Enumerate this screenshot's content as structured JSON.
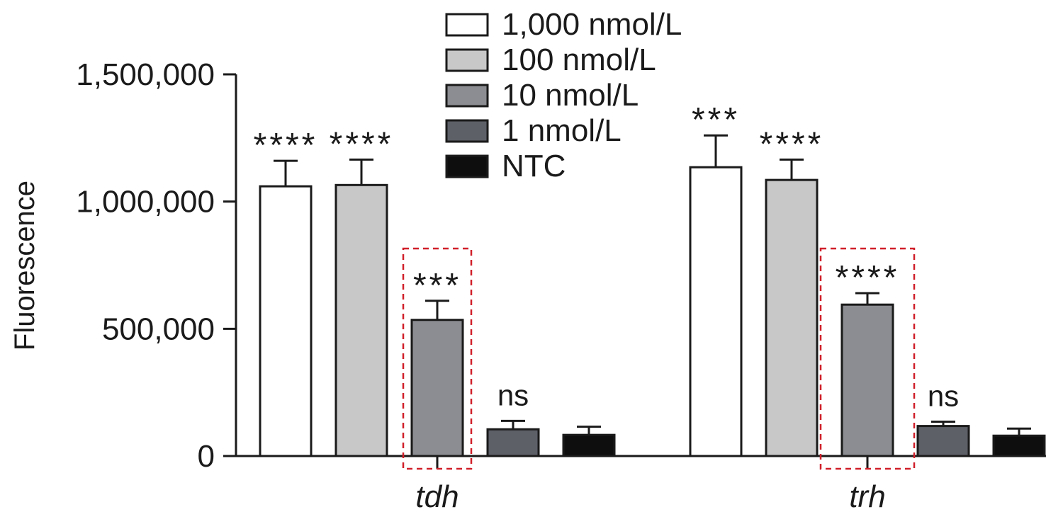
{
  "chart_data": {
    "type": "bar",
    "title": "",
    "xlabel": "",
    "ylabel": "Fluorescence",
    "ylim": [
      0,
      1500000
    ],
    "y_ticks": [
      {
        "value": 0,
        "label": "0"
      },
      {
        "value": 500000,
        "label": "500,000"
      },
      {
        "value": 1000000,
        "label": "1,000,000"
      },
      {
        "value": 1500000,
        "label": "1,500,000"
      }
    ],
    "categories": [
      "tdh",
      "trh"
    ],
    "legend_position": "top",
    "highlighted_series": "10 nmol/L",
    "highlight_color": "#d0202a",
    "series": [
      {
        "name": "1,000 nmol/L",
        "color": "#ffffff",
        "values": [
          1060000,
          1135000
        ],
        "errors": [
          100000,
          125000
        ],
        "significance": [
          "****",
          "***"
        ]
      },
      {
        "name": "100 nmol/L",
        "color": "#c8c8c8",
        "values": [
          1065000,
          1085000
        ],
        "errors": [
          100000,
          80000
        ],
        "significance": [
          "****",
          "****"
        ]
      },
      {
        "name": "10 nmol/L",
        "color": "#8c8d92",
        "values": [
          535000,
          595000
        ],
        "errors": [
          75000,
          45000
        ],
        "significance": [
          "***",
          "****"
        ]
      },
      {
        "name": "1 nmol/L",
        "color": "#5e6068",
        "values": [
          105000,
          118000
        ],
        "errors": [
          33000,
          17000
        ],
        "significance": [
          "ns",
          "ns"
        ]
      },
      {
        "name": "NTC",
        "color": "#0e0e0e",
        "values": [
          83000,
          80000
        ],
        "errors": [
          32000,
          28000
        ],
        "significance": [
          "",
          ""
        ]
      }
    ]
  }
}
